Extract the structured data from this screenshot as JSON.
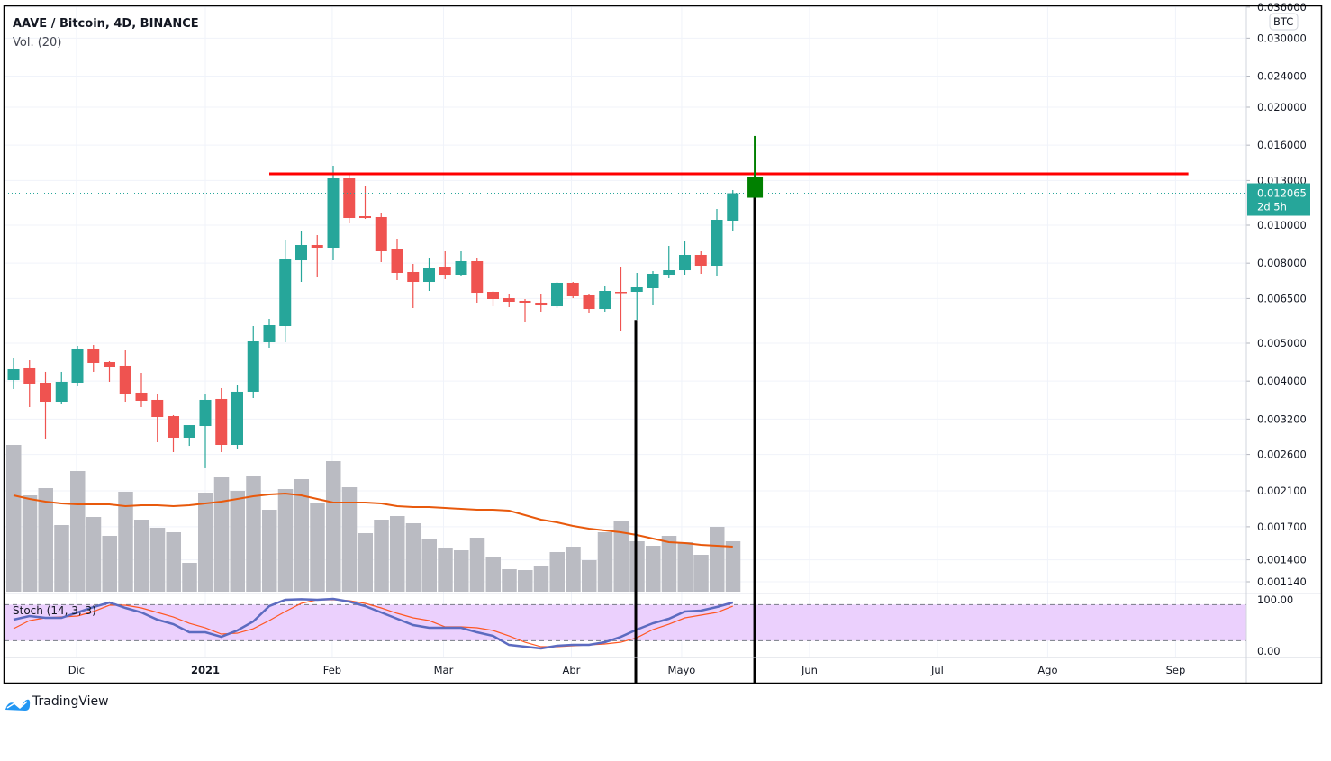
{
  "header": {
    "title": "AAVE / Bitcoin, 4D, BINANCE",
    "volume_label": "Vol. (20)"
  },
  "price_axis": {
    "currency_badge": "BTC",
    "ticks": [
      "0.036000",
      "0.030000",
      "0.024000",
      "0.020000",
      "0.016000",
      "0.013000",
      "0.010000",
      "0.008000",
      "0.006500",
      "0.005000",
      "0.004000",
      "0.003200",
      "0.002600",
      "0.002100",
      "0.001700",
      "0.001400",
      "0.001140"
    ],
    "last_price": "0.012065",
    "countdown": "2d 5h"
  },
  "stoch_axis": {
    "ticks": [
      "100.00",
      "0.00"
    ]
  },
  "time_axis": {
    "ticks": [
      {
        "label": "Dic",
        "bar": 3.94,
        "bold": false
      },
      {
        "label": "2021",
        "bar": 12.0,
        "bold": true
      },
      {
        "label": "Feb",
        "bar": 19.94,
        "bold": false
      },
      {
        "label": "Mar",
        "bar": 26.9,
        "bold": false
      },
      {
        "label": "Abr",
        "bar": 34.9,
        "bold": false
      },
      {
        "label": "Mayo",
        "bar": 41.8,
        "bold": false
      },
      {
        "label": "Jun",
        "bar": 49.8,
        "bold": false
      },
      {
        "label": "Jul",
        "bar": 57.8,
        "bold": false
      },
      {
        "label": "Ago",
        "bar": 64.7,
        "bold": false
      },
      {
        "label": "Sep",
        "bar": 72.7,
        "bold": false
      }
    ]
  },
  "colors": {
    "up": "#26a69a",
    "down": "#ef5350",
    "volume": "#babbc2",
    "volume_ma": "#e8590c",
    "stoch_k": "#5c6bc0",
    "stoch_d": "#ff5722",
    "stoch_band": "#ebd0fd",
    "hline": "#ff0000",
    "marker": "#008000",
    "vline": "#000000"
  },
  "chart_data": {
    "type": "candlestick",
    "title": "AAVE / Bitcoin, 4D, BINANCE",
    "y_scale": "log",
    "ylim": [
      0.00114,
      0.036
    ],
    "ohlc": [
      [
        0.004025,
        0.00457,
        0.003818,
        0.004289
      ],
      [
        0.004312,
        0.004522,
        0.003434,
        0.003941
      ],
      [
        0.003962,
        0.004222,
        0.002854,
        0.003545
      ],
      [
        0.003545,
        0.004222,
        0.003489,
        0.003983
      ],
      [
        0.003962,
        0.004921,
        0.003879,
        0.004844
      ],
      [
        0.004844,
        0.004947,
        0.004222,
        0.004451
      ],
      [
        0.004474,
        0.004498,
        0.003983,
        0.004357
      ],
      [
        0.004381,
        0.004793,
        0.003545,
        0.003718
      ],
      [
        0.003738,
        0.004199,
        0.003434,
        0.003564
      ],
      [
        0.003583,
        0.003718,
        0.002794,
        0.00324
      ],
      [
        0.003257,
        0.003275,
        0.002636,
        0.002869
      ],
      [
        0.002869,
        0.003089,
        0.002735,
        0.003089
      ],
      [
        0.003073,
        0.003698,
        0.002397,
        0.003583
      ],
      [
        0.003602,
        0.003838,
        0.002636,
        0.00275
      ],
      [
        0.00275,
        0.003899,
        0.002678,
        0.003758
      ],
      [
        0.003758,
        0.005529,
        0.003621,
        0.005053
      ],
      [
        0.005027,
        0.005768,
        0.00487,
        0.005558
      ],
      [
        0.005529,
        0.00914,
        0.005027,
        0.008178
      ],
      [
        0.008135,
        0.009636,
        0.007165,
        0.008901
      ],
      [
        0.008901,
        0.009435,
        0.007357,
        0.008761
      ],
      [
        0.008761,
        0.01418,
        0.008135,
        0.013167
      ],
      [
        0.013167,
        0.01352,
        0.010106,
        0.010432
      ],
      [
        0.010543,
        0.012555,
        0.010377,
        0.010432
      ],
      [
        0.010488,
        0.010712,
        0.00805,
        0.008578
      ],
      [
        0.008669,
        0.009237,
        0.007241,
        0.007555
      ],
      [
        0.007595,
        0.007965,
        0.006146,
        0.007165
      ],
      [
        0.007165,
        0.008265,
        0.006796,
        0.007757
      ],
      [
        0.007798,
        0.008578,
        0.00728,
        0.007475
      ],
      [
        0.007475,
        0.008578,
        0.007436,
        0.008093
      ],
      [
        0.008093,
        0.008222,
        0.006345,
        0.006724
      ],
      [
        0.00676,
        0.006796,
        0.006211,
        0.00648
      ],
      [
        0.006514,
        0.006689,
        0.006179,
        0.006378
      ],
      [
        0.006412,
        0.00648,
        0.005677,
        0.006311
      ],
      [
        0.006345,
        0.006689,
        0.006018,
        0.006244
      ],
      [
        0.006211,
        0.007165,
        0.006146,
        0.007128
      ],
      [
        0.007128,
        0.007165,
        0.006514,
        0.006584
      ],
      [
        0.006619,
        0.006654,
        0.005986,
        0.006113
      ],
      [
        0.006113,
        0.006978,
        0.006018,
        0.006796
      ],
      [
        0.00676,
        0.007798,
        0.005385,
        0.006724
      ],
      [
        0.00676,
        0.007555,
        0.005738,
        0.006941
      ],
      [
        0.006905,
        0.007635,
        0.006244,
        0.007515
      ],
      [
        0.007475,
        0.008854,
        0.007318,
        0.007675
      ],
      [
        0.007675,
        0.009092,
        0.007475,
        0.008398
      ],
      [
        0.008398,
        0.008578,
        0.007515,
        0.007881
      ],
      [
        0.007881,
        0.010999,
        0.007396,
        0.010322
      ],
      [
        0.010268,
        0.012291,
        0.009636,
        0.012065
      ]
    ],
    "volume": [
      163,
      107,
      115,
      74,
      134,
      83,
      62,
      111,
      80,
      71,
      66,
      32,
      110,
      127,
      112,
      128,
      91,
      114,
      125,
      98,
      145,
      116,
      65,
      80,
      84,
      76,
      59,
      48,
      46,
      60,
      38,
      25,
      24,
      29,
      44,
      50,
      35,
      66,
      79,
      56,
      51,
      62,
      55,
      41,
      72,
      56
    ],
    "volume_ma": [
      107,
      103,
      100,
      98,
      97,
      97,
      97,
      95,
      96,
      96,
      95,
      96,
      98,
      100,
      103,
      106,
      108,
      109,
      107,
      103,
      99,
      99,
      99,
      98,
      95,
      94,
      94,
      93,
      92,
      91,
      91,
      90,
      85,
      80,
      77,
      73,
      70,
      68,
      66,
      63,
      59,
      55,
      54,
      52,
      51,
      50
    ],
    "volume_max": 170,
    "stoch": {
      "label": "Stoch (14, 3, 3)",
      "upper_band": 80,
      "lower_band": 20,
      "k": [
        55,
        61,
        58,
        58,
        67,
        76,
        83.5,
        74.5,
        67,
        55,
        47.5,
        34,
        34,
        26.5,
        37,
        52,
        77.5,
        88,
        89,
        88,
        89.5,
        85,
        77.5,
        67,
        56.5,
        46,
        41.5,
        41.5,
        41.5,
        34,
        28,
        13,
        10,
        7,
        11.5,
        13,
        13,
        17.5,
        26.5,
        38.5,
        49,
        56.5,
        68.5,
        70,
        76,
        83.5
      ],
      "d": [
        40,
        53.5,
        58,
        59.5,
        61,
        68.5,
        79,
        79,
        74.5,
        67,
        59.5,
        49,
        41.5,
        31,
        32.5,
        40,
        53.5,
        68.5,
        82,
        88,
        88,
        86.5,
        82,
        74.5,
        65.5,
        58,
        53.5,
        43,
        43,
        41.5,
        37,
        28,
        17.5,
        10,
        10,
        11.5,
        13,
        14.5,
        17.5,
        25,
        38.5,
        47.5,
        58,
        62.5,
        67,
        77.5
      ]
    },
    "drawings": {
      "resistance_price": 0.01352,
      "resistance_from_bar": 16.0,
      "resistance_to_bar": 73.5,
      "vlines": [
        {
          "bar": 38.93,
          "from_price": 0.00573
        },
        {
          "bar": 46.37,
          "from_price": 0.01185
        }
      ],
      "marker": {
        "bar": 46.37,
        "top_price": 0.01689,
        "box_top_price": 0.01325,
        "box_bottom_price": 0.01175
      }
    }
  },
  "footer": {
    "brand": "TradingView"
  }
}
